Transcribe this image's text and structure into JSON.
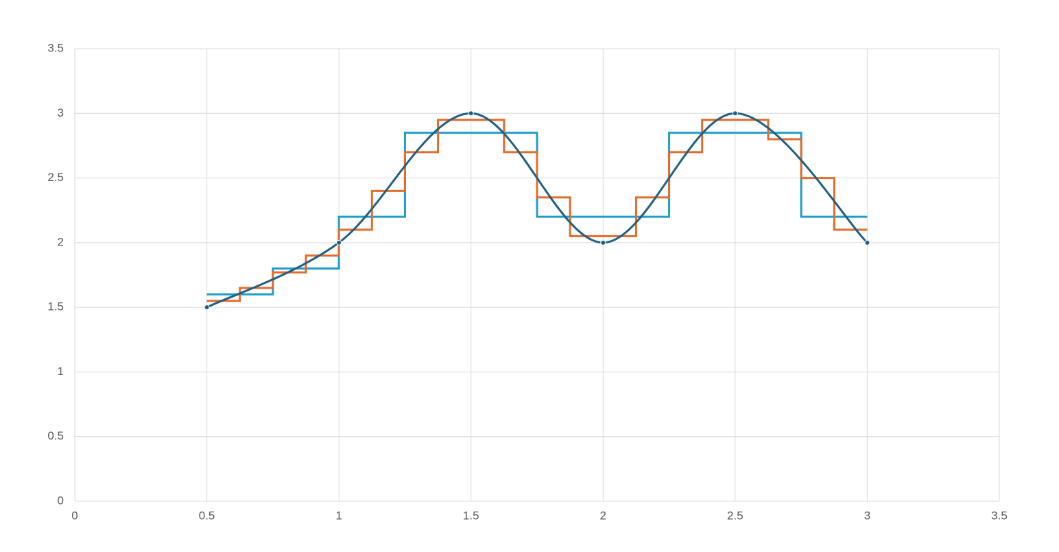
{
  "chart_data": {
    "type": "scatter",
    "xlim": [
      0,
      3.5
    ],
    "xticks": [
      0,
      0.5,
      1,
      1.5,
      2,
      2.5,
      3,
      3.5
    ],
    "ylim": [
      0,
      3.5
    ],
    "yticks": [
      0,
      0.5,
      1,
      1.5,
      2,
      2.5,
      3,
      3.5
    ],
    "grid": true,
    "series": [
      {
        "color": "#1f9dcc",
        "line": "straight",
        "marker": false,
        "x": [
          0.5,
          0.75,
          0.75,
          1,
          1,
          1.25,
          1.25,
          1.75,
          1.75,
          2.25,
          2.25,
          2.75,
          2.75,
          3
        ],
        "values": [
          1.6,
          1.6,
          1.8,
          1.8,
          2.2,
          2.2,
          2.85,
          2.85,
          2.2,
          2.2,
          2.85,
          2.85,
          2.2,
          2.2
        ]
      },
      {
        "color": "#e46c2a",
        "line": "straight",
        "marker": false,
        "x": [
          0.5,
          0.625,
          0.625,
          0.75,
          0.75,
          0.875,
          0.875,
          1,
          1,
          1.125,
          1.125,
          1.25,
          1.25,
          1.375,
          1.375,
          1.625,
          1.625,
          1.75,
          1.75,
          1.875,
          1.875,
          2.125,
          2.125,
          2.25,
          2.25,
          2.375,
          2.375,
          2.625,
          2.625,
          2.75,
          2.75,
          2.875,
          2.875,
          3
        ],
        "values": [
          1.55,
          1.55,
          1.65,
          1.65,
          1.77,
          1.77,
          1.9,
          1.9,
          2.1,
          2.1,
          2.4,
          2.4,
          2.7,
          2.7,
          2.95,
          2.95,
          2.7,
          2.7,
          2.35,
          2.35,
          2.05,
          2.05,
          2.35,
          2.35,
          2.7,
          2.7,
          2.95,
          2.95,
          2.8,
          2.8,
          2.5,
          2.5,
          2.1,
          2.1
        ]
      },
      {
        "color": "#1f5f82",
        "line": "smooth",
        "marker": true,
        "x": [
          0.5,
          1,
          1.5,
          2,
          2.5,
          3
        ],
        "values": [
          1.5,
          2,
          3,
          2,
          3,
          2
        ]
      }
    ]
  }
}
